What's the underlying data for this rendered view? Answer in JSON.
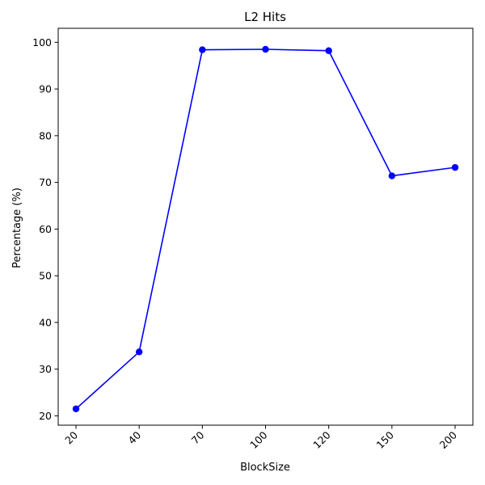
{
  "chart_data": {
    "type": "line",
    "title": "L2 Hits",
    "xlabel": "BlockSize",
    "ylabel": "Percentage (%)",
    "categories": [
      "20",
      "40",
      "70",
      "100",
      "120",
      "150",
      "200"
    ],
    "series": [
      {
        "values": [
          21.5,
          33.7,
          98.4,
          98.5,
          98.2,
          71.4,
          73.2
        ],
        "color": "#0000ff",
        "marker": "circle"
      }
    ],
    "yticks": [
      20,
      30,
      40,
      50,
      60,
      70,
      80,
      90,
      100
    ],
    "ylim": [
      18,
      103
    ],
    "grid": false,
    "legend": "none"
  }
}
